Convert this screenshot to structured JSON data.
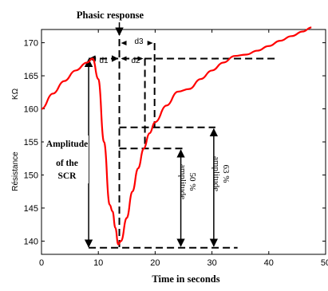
{
  "chart_data": {
    "type": "line",
    "title": "Phasic response",
    "xlabel": "Time in seconds",
    "ylabel": "Résistance",
    "ylabel_unit": "KΩ",
    "xlim": [
      0,
      50
    ],
    "ylim": [
      138,
      172
    ],
    "xticks": [
      0,
      10,
      20,
      30,
      40,
      50
    ],
    "yticks": [
      140,
      145,
      150,
      155,
      160,
      165,
      170
    ],
    "xtick_labels": [
      "0",
      "10",
      "20",
      "30",
      "40",
      "50"
    ],
    "ytick_labels": [
      "140",
      "145",
      "150",
      "155",
      "160",
      "165",
      "170"
    ],
    "grid": false,
    "series": [
      {
        "color": "#ff0000",
        "x": [
          0,
          2,
          4,
          6,
          8,
          9,
          10,
          11,
          12,
          12.5,
          13,
          13.5,
          14,
          15,
          16,
          17,
          18,
          19,
          20,
          22,
          24,
          26,
          28,
          30,
          32,
          34,
          36,
          38,
          40,
          42,
          44,
          46,
          47.5
        ],
        "y": [
          160,
          162.3,
          164.2,
          165.8,
          167.0,
          167.6,
          164.5,
          155,
          145.5,
          144.5,
          142,
          139.5,
          140,
          143.5,
          147.5,
          151,
          154,
          156.3,
          158,
          160.5,
          162.6,
          163,
          164.5,
          165.8,
          167,
          168,
          168.2,
          168.8,
          169.5,
          170.3,
          171,
          171.7,
          172.3
        ]
      }
    ],
    "annotations": {
      "d1": "d1",
      "d2": "d2",
      "d3": "d3",
      "amplitude_line1": "Amplitude",
      "amplitude_line2": "of the",
      "amplitude_line3": "SCR",
      "half_amplitude": "50 %\namplitude",
      "half_amplitude_line1": "50 %",
      "half_amplitude_line2": "amplitude",
      "sixtythree_amplitude_line1": "63 %",
      "sixtythree_amplitude_line2": "amplitude"
    },
    "guides": {
      "baseline_y": 139,
      "peak_x": 8.3,
      "peak_y": 167.6,
      "onset_x": 13.7,
      "d1_y": 167.6,
      "d3_x": 19.9,
      "d2_x": 18.2,
      "half_y": 154,
      "half_x_right": 24.8,
      "sixtythree_y": 157.2,
      "sixtythree_x_right": 30.6,
      "guide_end_x": 34.5,
      "top_guide_end_x": 41.5
    }
  }
}
